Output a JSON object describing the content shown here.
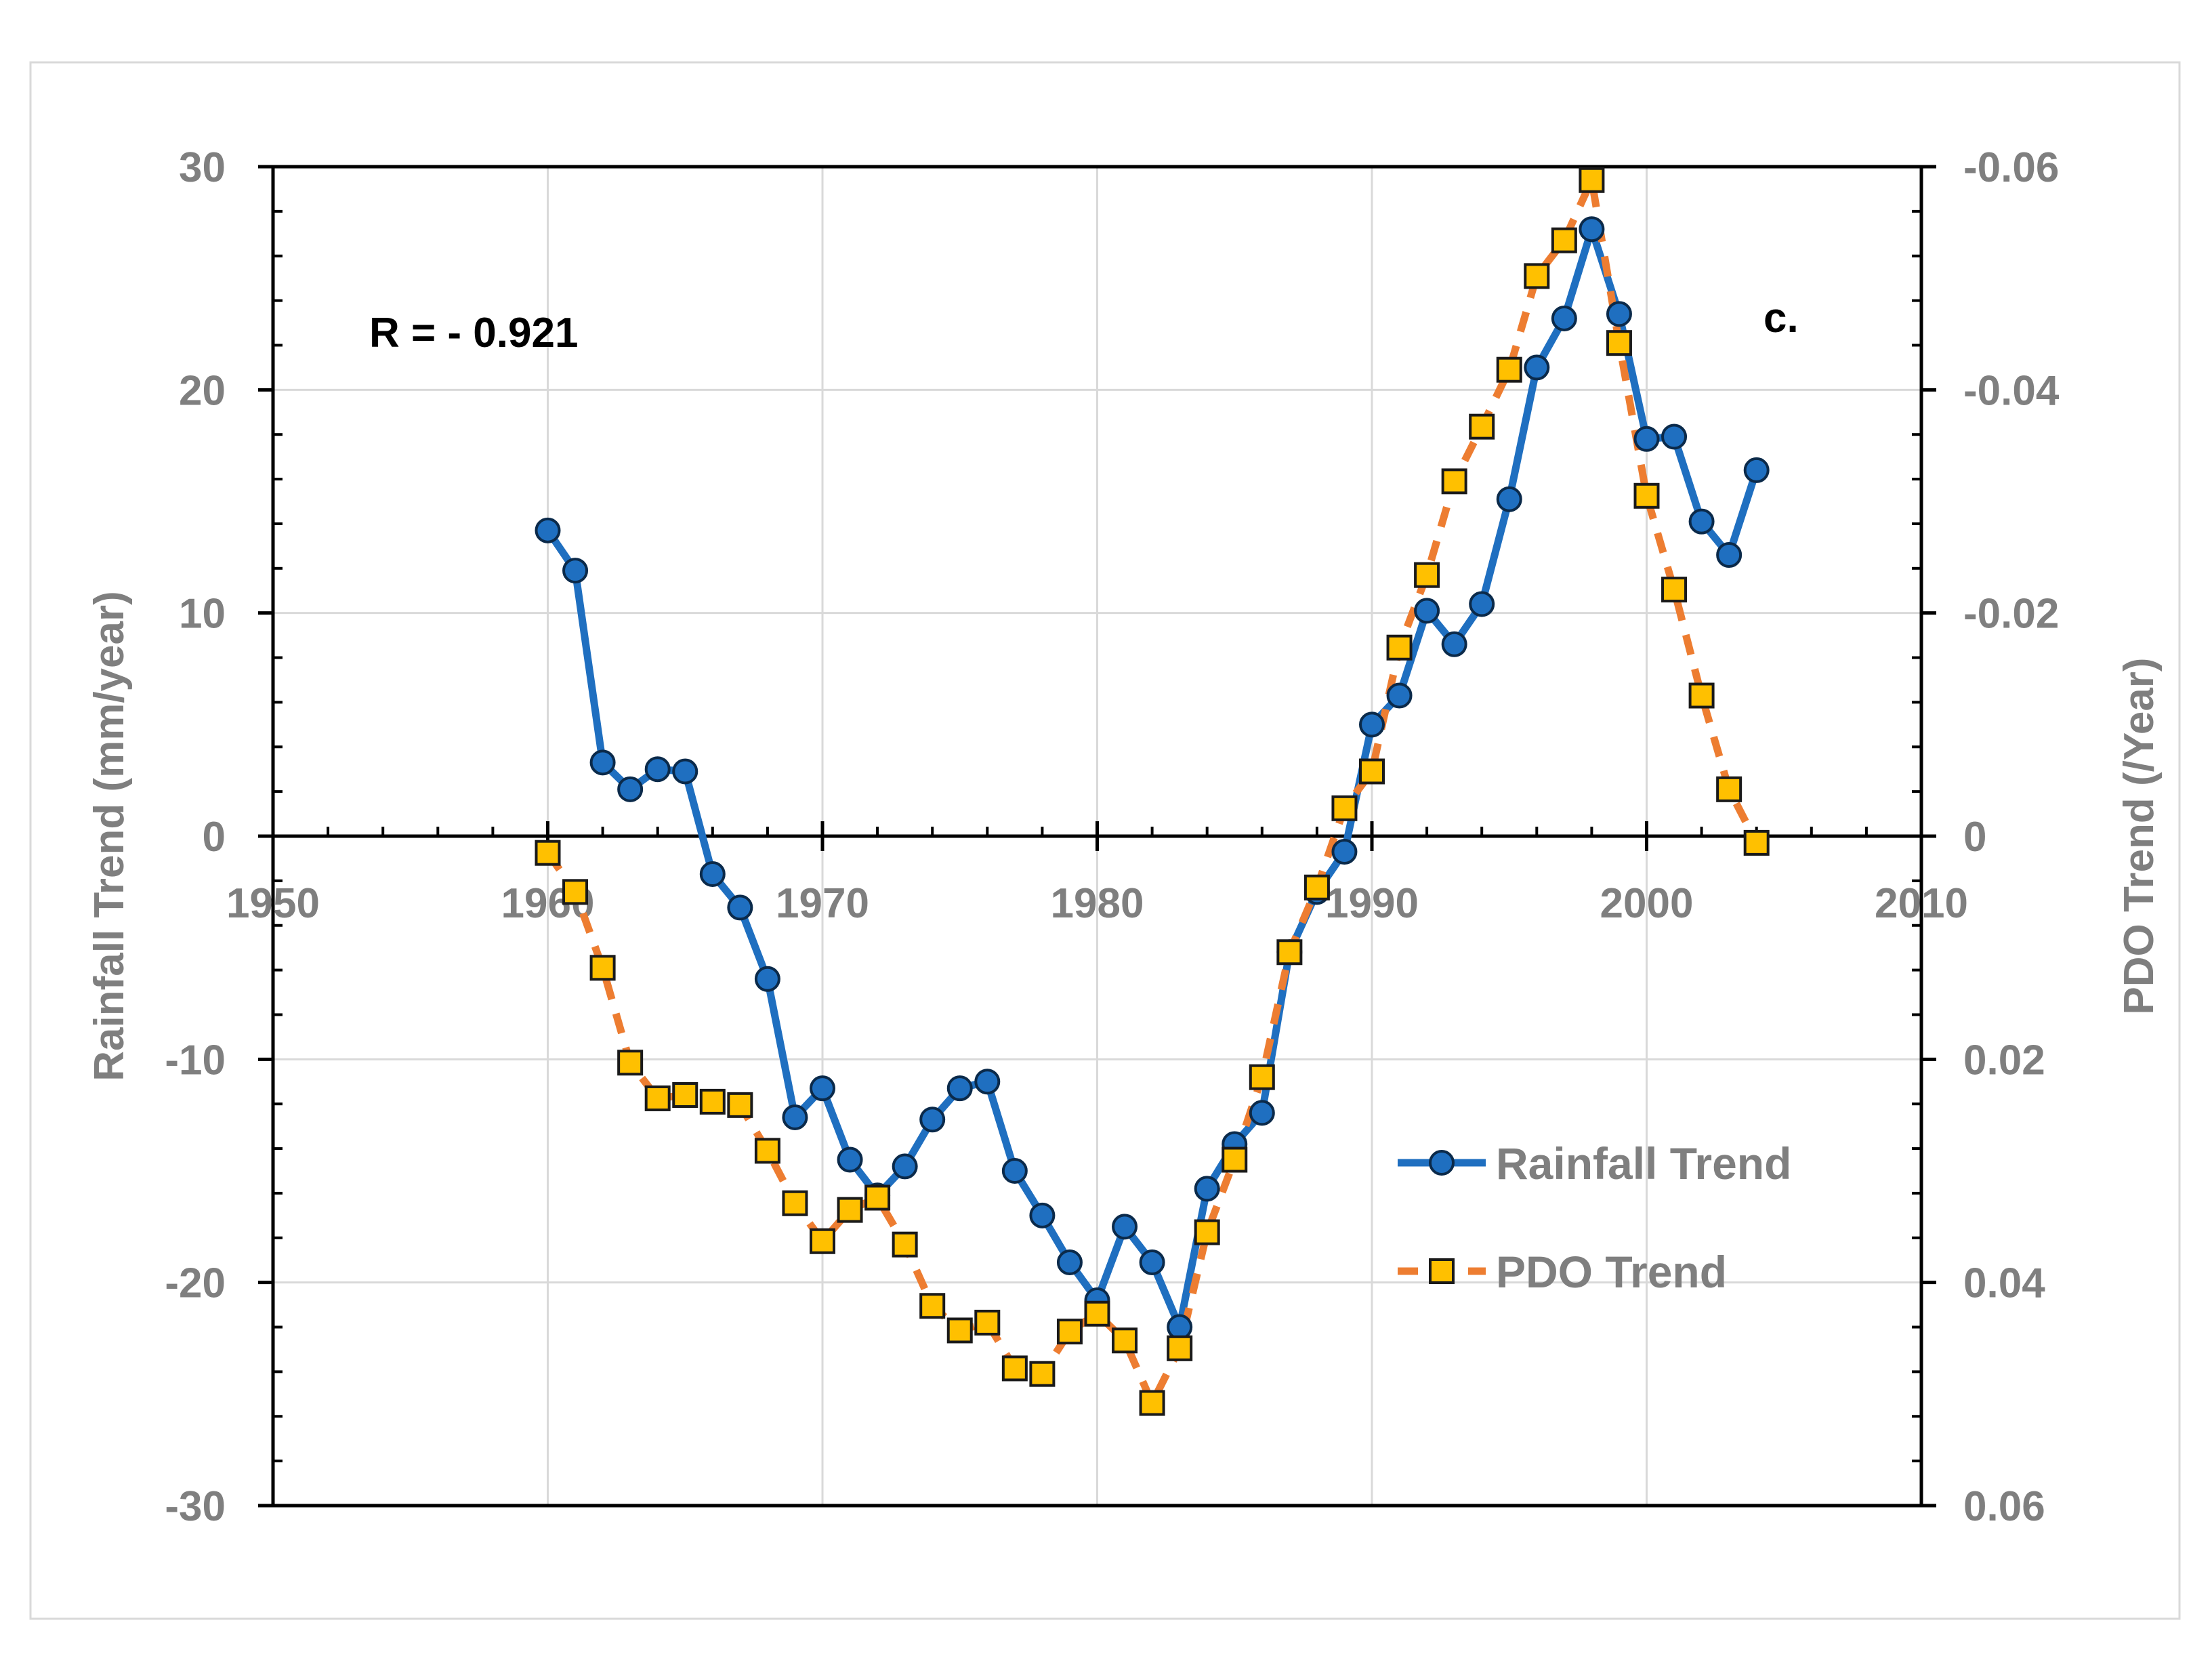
{
  "chart_data": {
    "type": "line",
    "title": "",
    "xlabel": "",
    "ylabel": "Rainfall Trend (mm/year)",
    "y2label": "PDO Trend (/Year)",
    "xlim": [
      1950,
      2010
    ],
    "ylim": [
      -30,
      30
    ],
    "y2lim": [
      0.06,
      -0.06
    ],
    "x_ticks": [
      1950,
      1960,
      1970,
      1980,
      1990,
      2000,
      2010
    ],
    "x_tick_labels": [
      "1950",
      "1960",
      "1970",
      "1980",
      "1990",
      "2000",
      "2010"
    ],
    "y_ticks": [
      30,
      20,
      10,
      0,
      -10,
      -20,
      -30
    ],
    "y_tick_labels": [
      "30",
      "20",
      "10",
      "0",
      "-10",
      "-20",
      "-30"
    ],
    "y2_ticks": [
      -0.06,
      -0.04,
      -0.02,
      0,
      0.02,
      0.04,
      0.06
    ],
    "y2_tick_labels": [
      "-0.06",
      "-0.04",
      "-0.02",
      "0",
      "0.02",
      "0.04",
      "0.06"
    ],
    "grid": true,
    "legend_position": "lower-right",
    "annotations": {
      "r_value": "R = - 0.921",
      "panel": "c."
    },
    "x": [
      1960,
      1961,
      1962,
      1963,
      1964,
      1965,
      1966,
      1967,
      1968,
      1969,
      1970,
      1971,
      1972,
      1973,
      1974,
      1975,
      1976,
      1977,
      1978,
      1979,
      1980,
      1981,
      1982,
      1983,
      1984,
      1985,
      1986,
      1987,
      1988,
      1989,
      1990,
      1991,
      1992,
      1993,
      1994,
      1995,
      1996,
      1997,
      1998,
      1999,
      2000,
      2001,
      2002,
      2003,
      2004
    ],
    "series": [
      {
        "name": "Rainfall Trend",
        "axis": "left",
        "color": "#1f6fc0",
        "marker": "circle",
        "line_style": "solid",
        "values": [
          13.7,
          11.9,
          3.3,
          2.1,
          3.0,
          2.9,
          -1.7,
          -3.2,
          -6.4,
          -12.6,
          -11.3,
          -14.5,
          -16.1,
          -14.8,
          -12.7,
          -11.3,
          -11.0,
          -15.0,
          -17.0,
          -19.1,
          -20.8,
          -17.5,
          -19.1,
          -22.0,
          -15.8,
          -13.8,
          -12.4,
          -5.2,
          -2.5,
          -0.7,
          5.0,
          6.3,
          10.1,
          8.6,
          10.4,
          15.1,
          21.0,
          23.2,
          27.2,
          23.4,
          17.8,
          17.9,
          14.1,
          12.6,
          16.4
        ]
      },
      {
        "name": "PDO Trend",
        "axis": "right",
        "color": "#ed7d31",
        "marker_fill": "#ffc000",
        "marker": "square",
        "line_style": "dashed",
        "values": [
          0.0015,
          0.005,
          0.0118,
          0.0203,
          0.0235,
          0.0232,
          0.0238,
          0.0241,
          0.0282,
          0.0329,
          0.0363,
          0.0335,
          0.0324,
          0.0366,
          0.0421,
          0.0443,
          0.0436,
          0.0477,
          0.0482,
          0.0444,
          0.0428,
          0.0452,
          0.0508,
          0.0459,
          0.0355,
          0.029,
          0.0216,
          0.0104,
          0.0046,
          -0.0025,
          -0.0058,
          -0.0169,
          -0.0234,
          -0.0318,
          -0.0367,
          -0.0418,
          -0.0502,
          -0.0534,
          -0.0588,
          -0.0442,
          -0.0305,
          -0.0221,
          -0.0126,
          -0.0042,
          0.0006
        ]
      }
    ]
  }
}
